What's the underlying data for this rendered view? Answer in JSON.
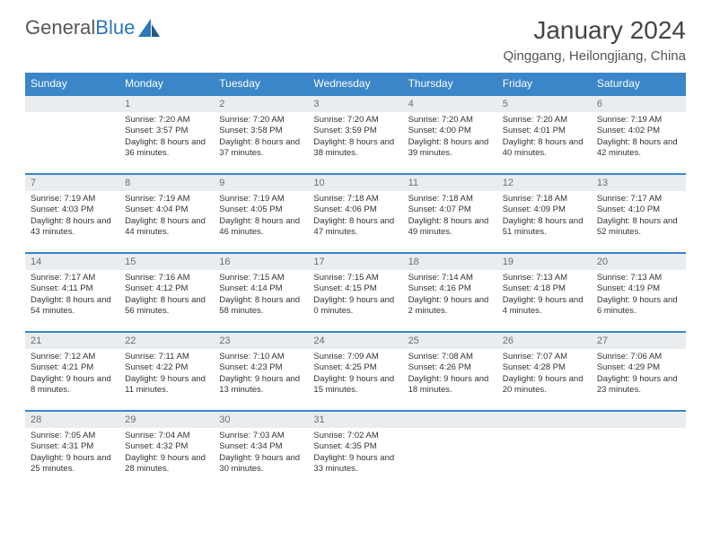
{
  "brand": {
    "name_a": "General",
    "name_b": "Blue"
  },
  "title": "January 2024",
  "location": "Qinggang, Heilongjiang, China",
  "colors": {
    "header_bg": "#3a86c8",
    "header_text": "#ffffff",
    "daynum_bg": "#e9edf0",
    "daynum_text": "#6a6f74",
    "rule": "#3a86c8",
    "body_text": "#333333",
    "brand_gray": "#555555",
    "brand_blue": "#2b77b8",
    "page_bg": "#ffffff"
  },
  "weekdays": [
    "Sunday",
    "Monday",
    "Tuesday",
    "Wednesday",
    "Thursday",
    "Friday",
    "Saturday"
  ],
  "start_weekday": 1,
  "days": [
    {
      "n": 1,
      "sunrise": "7:20 AM",
      "sunset": "3:57 PM",
      "daylight": "8 hours and 36 minutes."
    },
    {
      "n": 2,
      "sunrise": "7:20 AM",
      "sunset": "3:58 PM",
      "daylight": "8 hours and 37 minutes."
    },
    {
      "n": 3,
      "sunrise": "7:20 AM",
      "sunset": "3:59 PM",
      "daylight": "8 hours and 38 minutes."
    },
    {
      "n": 4,
      "sunrise": "7:20 AM",
      "sunset": "4:00 PM",
      "daylight": "8 hours and 39 minutes."
    },
    {
      "n": 5,
      "sunrise": "7:20 AM",
      "sunset": "4:01 PM",
      "daylight": "8 hours and 40 minutes."
    },
    {
      "n": 6,
      "sunrise": "7:19 AM",
      "sunset": "4:02 PM",
      "daylight": "8 hours and 42 minutes."
    },
    {
      "n": 7,
      "sunrise": "7:19 AM",
      "sunset": "4:03 PM",
      "daylight": "8 hours and 43 minutes."
    },
    {
      "n": 8,
      "sunrise": "7:19 AM",
      "sunset": "4:04 PM",
      "daylight": "8 hours and 44 minutes."
    },
    {
      "n": 9,
      "sunrise": "7:19 AM",
      "sunset": "4:05 PM",
      "daylight": "8 hours and 46 minutes."
    },
    {
      "n": 10,
      "sunrise": "7:18 AM",
      "sunset": "4:06 PM",
      "daylight": "8 hours and 47 minutes."
    },
    {
      "n": 11,
      "sunrise": "7:18 AM",
      "sunset": "4:07 PM",
      "daylight": "8 hours and 49 minutes."
    },
    {
      "n": 12,
      "sunrise": "7:18 AM",
      "sunset": "4:09 PM",
      "daylight": "8 hours and 51 minutes."
    },
    {
      "n": 13,
      "sunrise": "7:17 AM",
      "sunset": "4:10 PM",
      "daylight": "8 hours and 52 minutes."
    },
    {
      "n": 14,
      "sunrise": "7:17 AM",
      "sunset": "4:11 PM",
      "daylight": "8 hours and 54 minutes."
    },
    {
      "n": 15,
      "sunrise": "7:16 AM",
      "sunset": "4:12 PM",
      "daylight": "8 hours and 56 minutes."
    },
    {
      "n": 16,
      "sunrise": "7:15 AM",
      "sunset": "4:14 PM",
      "daylight": "8 hours and 58 minutes."
    },
    {
      "n": 17,
      "sunrise": "7:15 AM",
      "sunset": "4:15 PM",
      "daylight": "9 hours and 0 minutes."
    },
    {
      "n": 18,
      "sunrise": "7:14 AM",
      "sunset": "4:16 PM",
      "daylight": "9 hours and 2 minutes."
    },
    {
      "n": 19,
      "sunrise": "7:13 AM",
      "sunset": "4:18 PM",
      "daylight": "9 hours and 4 minutes."
    },
    {
      "n": 20,
      "sunrise": "7:13 AM",
      "sunset": "4:19 PM",
      "daylight": "9 hours and 6 minutes."
    },
    {
      "n": 21,
      "sunrise": "7:12 AM",
      "sunset": "4:21 PM",
      "daylight": "9 hours and 8 minutes."
    },
    {
      "n": 22,
      "sunrise": "7:11 AM",
      "sunset": "4:22 PM",
      "daylight": "9 hours and 11 minutes."
    },
    {
      "n": 23,
      "sunrise": "7:10 AM",
      "sunset": "4:23 PM",
      "daylight": "9 hours and 13 minutes."
    },
    {
      "n": 24,
      "sunrise": "7:09 AM",
      "sunset": "4:25 PM",
      "daylight": "9 hours and 15 minutes."
    },
    {
      "n": 25,
      "sunrise": "7:08 AM",
      "sunset": "4:26 PM",
      "daylight": "9 hours and 18 minutes."
    },
    {
      "n": 26,
      "sunrise": "7:07 AM",
      "sunset": "4:28 PM",
      "daylight": "9 hours and 20 minutes."
    },
    {
      "n": 27,
      "sunrise": "7:06 AM",
      "sunset": "4:29 PM",
      "daylight": "9 hours and 23 minutes."
    },
    {
      "n": 28,
      "sunrise": "7:05 AM",
      "sunset": "4:31 PM",
      "daylight": "9 hours and 25 minutes."
    },
    {
      "n": 29,
      "sunrise": "7:04 AM",
      "sunset": "4:32 PM",
      "daylight": "9 hours and 28 minutes."
    },
    {
      "n": 30,
      "sunrise": "7:03 AM",
      "sunset": "4:34 PM",
      "daylight": "9 hours and 30 minutes."
    },
    {
      "n": 31,
      "sunrise": "7:02 AM",
      "sunset": "4:35 PM",
      "daylight": "9 hours and 33 minutes."
    }
  ],
  "labels": {
    "sunrise": "Sunrise:",
    "sunset": "Sunset:",
    "daylight": "Daylight:"
  }
}
